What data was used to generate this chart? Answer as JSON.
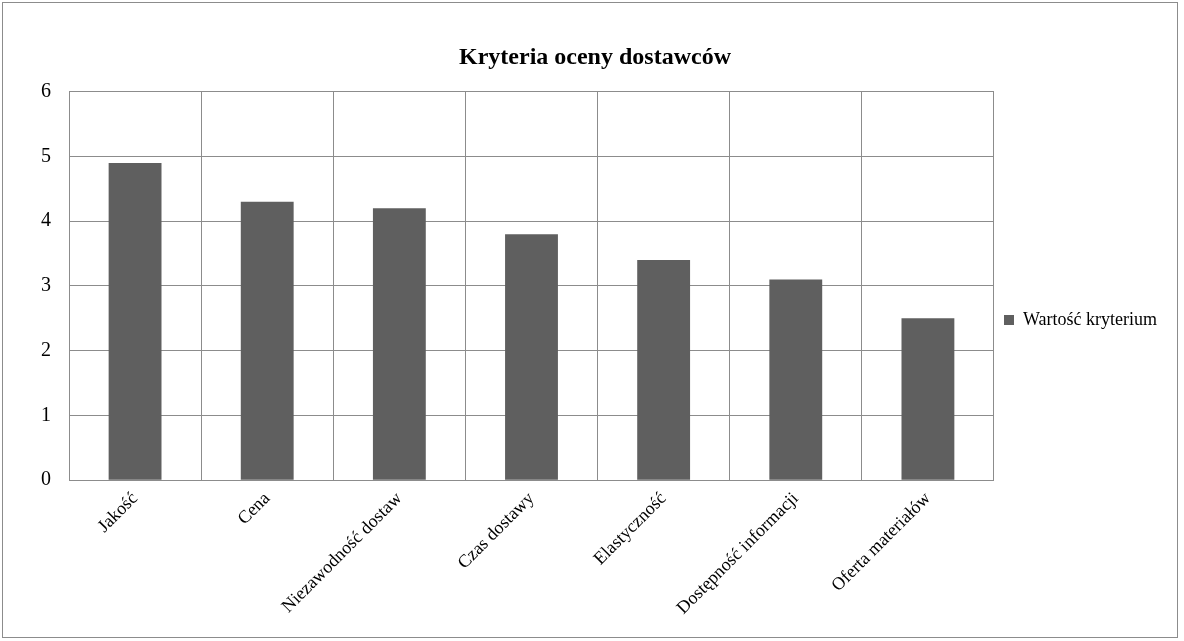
{
  "chart_data": {
    "type": "bar",
    "title": "Kryteria oceny dostawców",
    "categories": [
      "Jakość",
      "Cena",
      "Niezawodność dostaw",
      "Czas dostawy",
      "Elastyczność",
      "Dostępność informacji",
      "Oferta materiałów"
    ],
    "series": [
      {
        "name": "Wartość kryterium",
        "color": "#5f5f5f",
        "values": [
          4.9,
          4.3,
          4.2,
          3.8,
          3.4,
          3.1,
          2.5
        ]
      }
    ],
    "ylim": [
      0,
      6
    ],
    "yticks": [
      0,
      1,
      2,
      3,
      4,
      5,
      6
    ],
    "grid": true,
    "legend": "right"
  }
}
